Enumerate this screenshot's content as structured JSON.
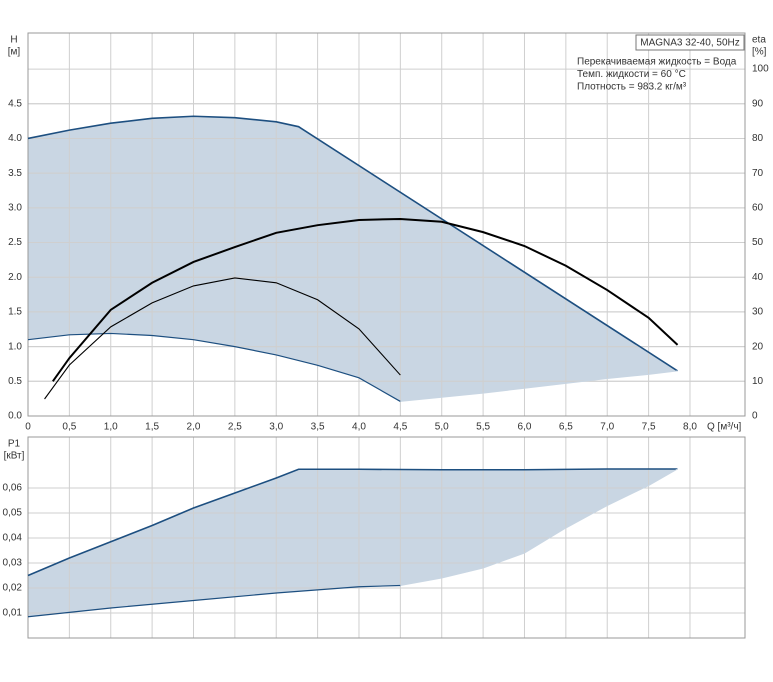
{
  "chart_data": [
    {
      "type": "line",
      "title": "MAGNA3 32-40, 50Hz",
      "annotations": [
        "Перекачиваемая жидкость = Вода",
        "Темп. жидкости = 60 °C",
        "Плотность = 983.2 кг/м³"
      ],
      "ylabel": "H",
      "yunit": "[м]",
      "y2label": "eta",
      "y2unit": "[%]",
      "xlabel": "Q [м³/ч]",
      "xlim": [
        0,
        8.665
      ],
      "ylim": [
        0,
        5.52
      ],
      "y2lim": [
        0,
        110.4
      ],
      "xticks": [
        {
          "value": 0,
          "label": "0"
        },
        {
          "value": 0.5,
          "label": "0,5"
        },
        {
          "value": 1,
          "label": "1,0"
        },
        {
          "value": 1.5,
          "label": "1,5"
        },
        {
          "value": 2,
          "label": "2,0"
        },
        {
          "value": 2.5,
          "label": "2,5"
        },
        {
          "value": 3,
          "label": "3,0"
        },
        {
          "value": 3.5,
          "label": "3,5"
        },
        {
          "value": 4,
          "label": "4,0"
        },
        {
          "value": 4.5,
          "label": "4,5"
        },
        {
          "value": 5,
          "label": "5,0"
        },
        {
          "value": 5.5,
          "label": "5,5"
        },
        {
          "value": 6,
          "label": "6,0"
        },
        {
          "value": 6.5,
          "label": "6,5"
        },
        {
          "value": 7,
          "label": "7,0"
        },
        {
          "value": 7.5,
          "label": "7,5"
        },
        {
          "value": 8,
          "label": "8,0"
        }
      ],
      "yticks": [
        {
          "value": 0,
          "label": "0.0"
        },
        {
          "value": 0.5,
          "label": "0.5"
        },
        {
          "value": 1,
          "label": "1.0"
        },
        {
          "value": 1.5,
          "label": "1.5"
        },
        {
          "value": 2,
          "label": "2.0"
        },
        {
          "value": 2.5,
          "label": "2.5"
        },
        {
          "value": 3,
          "label": "3.0"
        },
        {
          "value": 3.5,
          "label": "3.5"
        },
        {
          "value": 4,
          "label": "4.0"
        },
        {
          "value": 4.5,
          "label": "4.5"
        }
      ],
      "y2ticks": [
        0,
        10,
        20,
        30,
        40,
        50,
        60,
        70,
        80,
        90,
        100
      ],
      "grid": true,
      "envelope": {
        "color": "#c9d6e3",
        "edge_color": "#1d4f80",
        "upper": {
          "x": [
            0,
            0.5,
            1,
            1.5,
            2,
            2.5,
            3,
            3.27,
            7.85
          ],
          "values": [
            4.0,
            4.12,
            4.22,
            4.29,
            4.32,
            4.3,
            4.24,
            4.17,
            0.65
          ]
        },
        "lower": {
          "x": [
            0,
            0.5,
            1,
            1.5,
            2,
            2.5,
            3,
            3.5,
            4,
            4.5
          ],
          "values": [
            1.1,
            1.17,
            1.19,
            1.16,
            1.1,
            1.0,
            0.88,
            0.73,
            0.55,
            0.21
          ]
        },
        "limit": {
          "x": [
            4.5,
            5,
            5.5,
            6,
            6.5,
            7,
            7.5,
            7.85
          ],
          "values": [
            0.21,
            0.27,
            0.33,
            0.4,
            0.47,
            0.54,
            0.6,
            0.65
          ]
        }
      },
      "series": [
        {
          "color": "#000000",
          "axis": "y2",
          "x": [
            0.3,
            0.5,
            1,
            1.5,
            2,
            2.5,
            3,
            3.5,
            4,
            4.5,
            5,
            5.5,
            6,
            6.5,
            7,
            7.5,
            7.85
          ],
          "values": [
            10,
            16.7,
            30.6,
            38.4,
            44.4,
            48.7,
            52.8,
            55,
            56.5,
            56.8,
            56,
            53,
            49,
            43.3,
            36.3,
            28.3,
            20.5
          ]
        },
        {
          "color": "#000000",
          "axis": "y2",
          "x": [
            0.2,
            0.5,
            1,
            1.5,
            2,
            2.5,
            3,
            3.5,
            4,
            4.5
          ],
          "values": [
            4.9,
            14.7,
            25.7,
            32.6,
            37.5,
            39.8,
            38.4,
            33.5,
            25.1,
            11.8
          ]
        }
      ]
    },
    {
      "type": "line",
      "ylabel": "P1",
      "yunit": "[кВт]",
      "xlim": [
        0,
        8.665
      ],
      "ylim": [
        0,
        0.0804
      ],
      "yticks": [
        {
          "value": 0.01,
          "label": "0,01"
        },
        {
          "value": 0.02,
          "label": "0,02"
        },
        {
          "value": 0.03,
          "label": "0,03"
        },
        {
          "value": 0.04,
          "label": "0,04"
        },
        {
          "value": 0.05,
          "label": "0,05"
        },
        {
          "value": 0.06,
          "label": "0,06"
        }
      ],
      "grid": true,
      "envelope": {
        "color": "#c9d6e3",
        "edge_color": "#1d4f80",
        "upper": {
          "x": [
            0,
            0.5,
            1,
            1.5,
            2,
            2.5,
            3,
            3.27,
            4,
            5,
            6,
            7,
            7.85
          ],
          "values": [
            0.025,
            0.032,
            0.0385,
            0.045,
            0.052,
            0.058,
            0.064,
            0.0675,
            0.0675,
            0.0673,
            0.0673,
            0.0676,
            0.0676
          ]
        },
        "lower": {
          "x": [
            0,
            1,
            2,
            3,
            4,
            4.5
          ],
          "values": [
            0.0085,
            0.012,
            0.015,
            0.018,
            0.0205,
            0.021
          ]
        },
        "limit": {
          "x": [
            4.5,
            5,
            5.5,
            6,
            6.5,
            7,
            7.5,
            7.85
          ],
          "values": [
            0.021,
            0.024,
            0.028,
            0.034,
            0.044,
            0.053,
            0.061,
            0.0676
          ]
        }
      }
    }
  ]
}
